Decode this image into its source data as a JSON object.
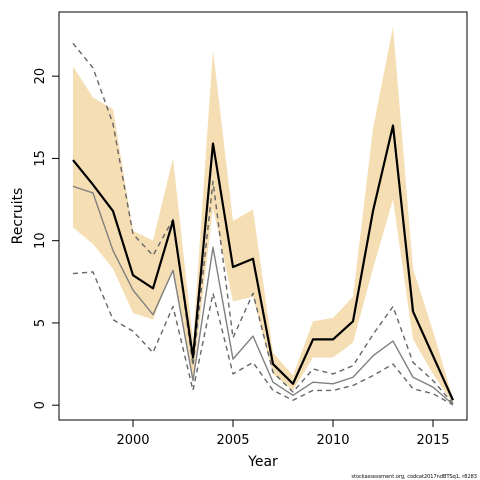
{
  "chart_data": {
    "type": "line",
    "xlabel": "Year",
    "ylabel": "Recruits",
    "credit": "stockassessment.org, codcat2017ndBTSq1, r8283",
    "xlim": [
      1996.3,
      2016.7
    ],
    "ylim": [
      -0.9,
      23.9
    ],
    "x_ticks": [
      2000,
      2005,
      2010,
      2015
    ],
    "y_ticks": [
      0,
      5,
      10,
      15,
      20
    ],
    "grid": false,
    "x": [
      1997,
      1998,
      1999,
      2000,
      2001,
      2002,
      2003,
      2004,
      2005,
      2006,
      2007,
      2008,
      2009,
      2010,
      2011,
      2012,
      2013,
      2014,
      2015,
      2016
    ],
    "band": {
      "color": "#F5DEB3",
      "lower": [
        10.8,
        9.8,
        8.3,
        5.6,
        5.2,
        8.3,
        1.6,
        12.0,
        6.3,
        6.6,
        1.9,
        0.9,
        2.9,
        2.9,
        3.8,
        8.3,
        12.5,
        4.0,
        1.9,
        0.1
      ],
      "upper": [
        20.6,
        18.7,
        18.0,
        10.6,
        10.0,
        15.0,
        3.9,
        21.6,
        11.2,
        11.9,
        3.2,
        1.8,
        5.1,
        5.3,
        6.6,
        16.8,
        23.0,
        8.3,
        4.5,
        0.4
      ]
    },
    "series": [
      {
        "color": "#000000",
        "style": "solid-bold",
        "values": [
          14.9,
          13.4,
          11.8,
          7.9,
          7.1,
          11.2,
          2.9,
          15.9,
          8.4,
          8.9,
          2.5,
          1.3,
          4.0,
          4.0,
          5.1,
          11.8,
          17.0,
          5.7,
          3.0,
          0.3
        ]
      },
      {
        "color": "#808080",
        "style": "solid",
        "values": [
          13.3,
          12.9,
          9.4,
          7.0,
          5.5,
          8.2,
          1.5,
          9.6,
          2.8,
          4.2,
          1.4,
          0.6,
          1.4,
          1.3,
          1.7,
          3.0,
          3.9,
          1.7,
          1.1,
          0.05
        ]
      },
      {
        "color": "#666666",
        "style": "dashed",
        "values": [
          22.0,
          20.5,
          17.1,
          10.4,
          9.1,
          11.3,
          2.4,
          13.6,
          4.1,
          6.8,
          2.0,
          0.8,
          2.2,
          1.9,
          2.4,
          4.3,
          6.0,
          2.6,
          1.5,
          0.1
        ]
      },
      {
        "color": "#666666",
        "style": "dashed",
        "values": [
          8.0,
          8.1,
          5.2,
          4.5,
          3.2,
          6.0,
          0.9,
          6.8,
          1.9,
          2.6,
          0.9,
          0.3,
          0.9,
          0.9,
          1.2,
          1.8,
          2.5,
          1.0,
          0.7,
          0.02
        ]
      }
    ]
  }
}
